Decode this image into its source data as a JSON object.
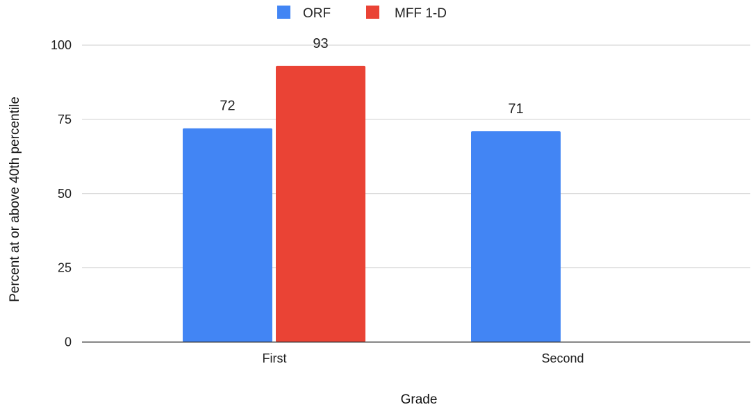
{
  "chart_data": {
    "type": "bar",
    "categories": [
      "First",
      "Second"
    ],
    "series": [
      {
        "name": "ORF",
        "values": [
          72,
          71
        ],
        "color": "#4285F4"
      },
      {
        "name": "MFF 1-D",
        "values": [
          93,
          null
        ],
        "color": "#EA4335"
      }
    ],
    "xlabel": "Grade",
    "ylabel": "Percent at or above 40th percentile",
    "ylim": [
      0,
      100
    ],
    "yticks": [
      0,
      25,
      50,
      75,
      100
    ],
    "grid": true,
    "legend_position": "top"
  }
}
